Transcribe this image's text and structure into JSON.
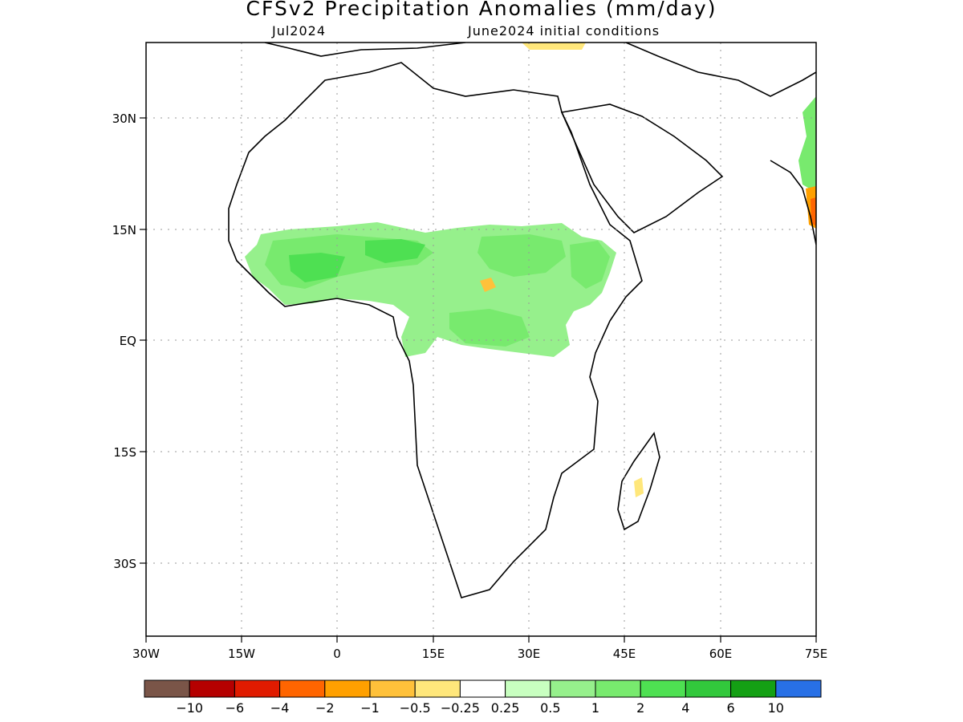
{
  "title": "CFSv2 Precipitation Anomalies (mm/day)",
  "subtitle_left": "Jul2024",
  "subtitle_right": "June2024 initial conditions",
  "lat_labels": [
    "30N",
    "15N",
    "EQ",
    "15S",
    "30S"
  ],
  "lon_labels": [
    "30W",
    "15W",
    "0",
    "15E",
    "30E",
    "45E",
    "60E",
    "75E"
  ],
  "colorbar": {
    "colors": [
      "#7a5548",
      "#b50000",
      "#e01b00",
      "#ff6500",
      "#ffa000",
      "#ffc13a",
      "#ffe77b",
      "#ffffff",
      "#c8ffc0",
      "#96f08c",
      "#78ea6e",
      "#4ee052",
      "#32c83c",
      "#14a014",
      "#2870e6"
    ],
    "labels": [
      "-10",
      "-6",
      "-4",
      "-2",
      "-1",
      "-0.5",
      "-0.25",
      "0.25",
      "0.5",
      "1",
      "2",
      "4",
      "6",
      "10"
    ]
  }
}
